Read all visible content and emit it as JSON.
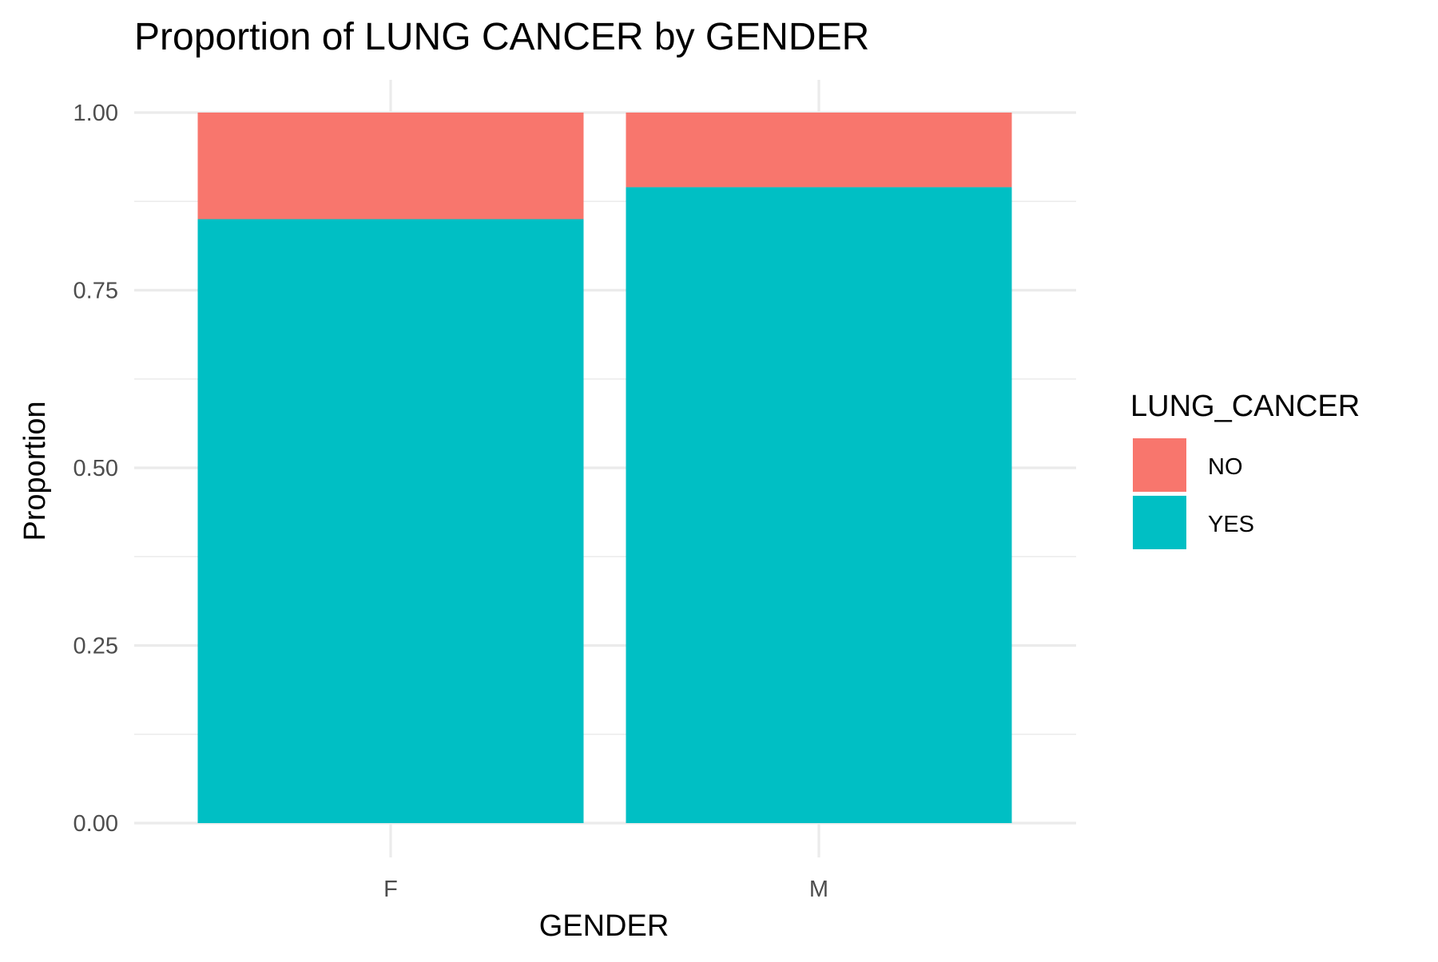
{
  "chart_data": {
    "type": "bar",
    "stacked": true,
    "title": "Proportion of LUNG CANCER by GENDER",
    "xlabel": "GENDER",
    "ylabel": "Proportion",
    "categories": [
      "F",
      "M"
    ],
    "series": [
      {
        "name": "NO",
        "values": [
          0.15,
          0.105
        ],
        "color": "#F8766D"
      },
      {
        "name": "YES",
        "values": [
          0.85,
          0.895
        ],
        "color": "#00BFC4"
      }
    ],
    "ylim": [
      0,
      1
    ],
    "yticks": [
      0,
      0.25,
      0.5,
      0.75,
      1
    ],
    "ytick_labels": [
      "0.00",
      "0.25",
      "0.50",
      "0.75",
      "1.00"
    ],
    "grid": true,
    "legend": {
      "title": "LUNG_CANCER",
      "placement": "right",
      "entries": [
        "NO",
        "YES"
      ]
    }
  }
}
